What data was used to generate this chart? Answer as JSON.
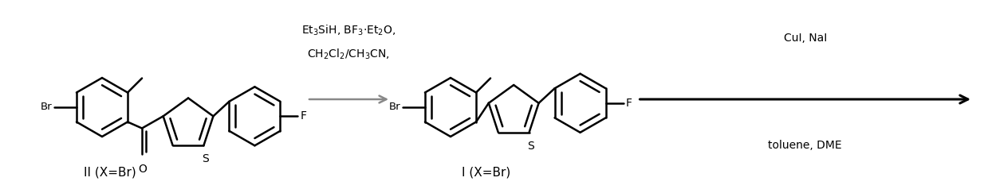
{
  "figsize": [
    12.39,
    2.43
  ],
  "dpi": 100,
  "bg_color": "#ffffff",
  "lw": 1.8,
  "black": "#000000",
  "gray": "#888888",
  "reagent1_line1": "Et$_3$SiH, BF$_3$·Et$_2$O,",
  "reagent1_line2": "CH$_2$Cl$_2$/CH$_3$CN,",
  "reagent2_line1": "CuI, NaI",
  "reagent2_line2": "toluene, DME",
  "label1": "II (X=Br)",
  "label2": "I (X=Br)"
}
